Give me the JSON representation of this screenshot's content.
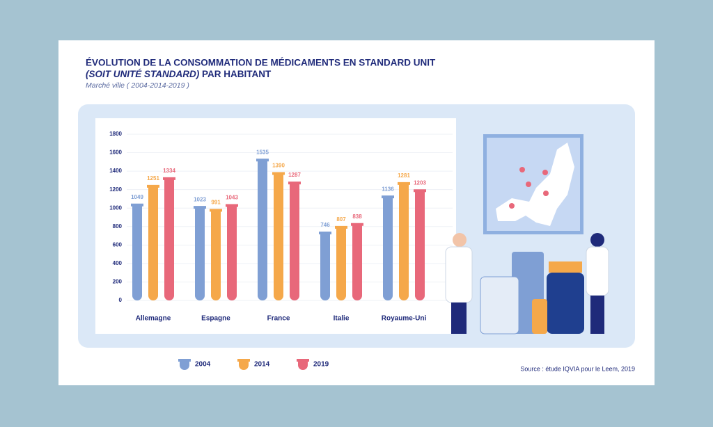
{
  "chart_data": {
    "type": "bar",
    "title": [
      "ÉVOLUTION DE LA CONSOMMATION DE MÉDICAMENTS EN STANDARD UNIT",
      "(SOIT UNITÉ STANDARD)",
      "PAR HABITANT"
    ],
    "subtitle": "Marché ville ( 2004-2014-2019 )",
    "source": "Source : étude IQVIA pour le Leem, 2019",
    "categories": [
      "Allemagne",
      "Espagne",
      "France",
      "Italie",
      "Royaume-Uni"
    ],
    "series": [
      {
        "name": "2004",
        "color": "#7f9fd4",
        "values": [
          1049,
          1023,
          1535,
          746,
          1136
        ]
      },
      {
        "name": "2014",
        "color": "#f5a84a",
        "values": [
          1251,
          991,
          1390,
          807,
          1281
        ]
      },
      {
        "name": "2019",
        "color": "#e8687a",
        "values": [
          1334,
          1043,
          1287,
          838,
          1203
        ]
      }
    ],
    "ylim": [
      0,
      1800
    ],
    "yticks": [
      0,
      200,
      400,
      600,
      800,
      1000,
      1200,
      1400,
      1600,
      1800
    ],
    "grid": true
  }
}
